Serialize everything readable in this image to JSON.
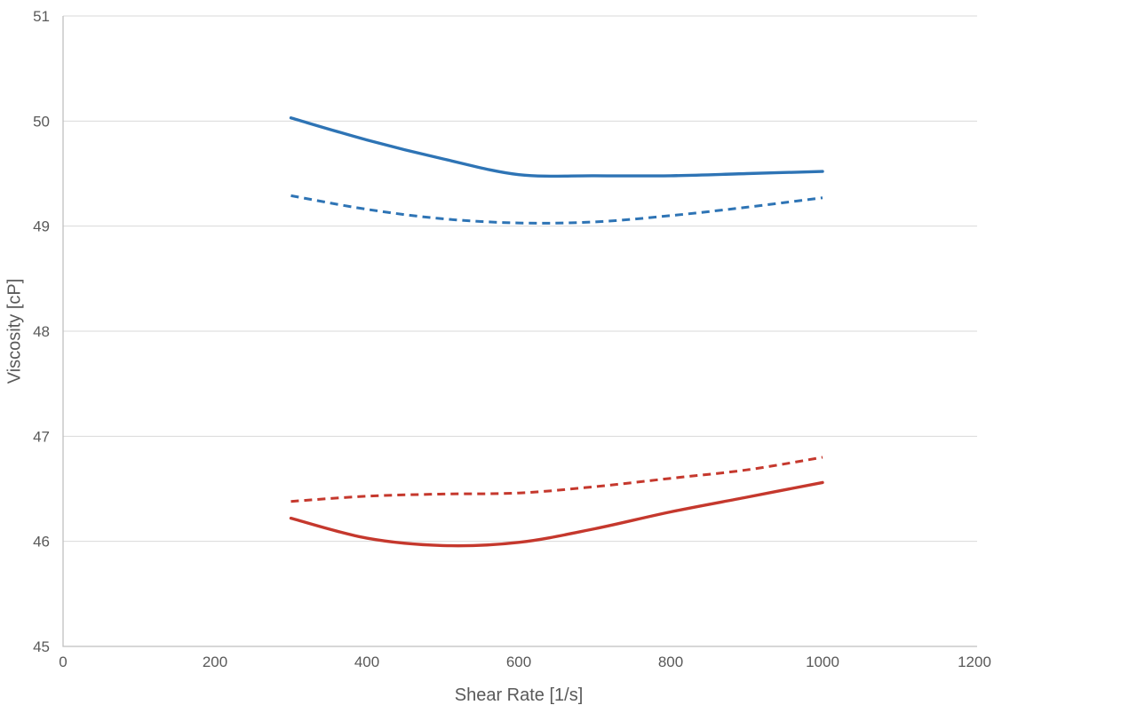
{
  "chart_data": {
    "type": "line",
    "title": "",
    "xlabel": "Shear Rate [1/s]",
    "ylabel": "Viscosity [cP]",
    "xlim": [
      0,
      1200
    ],
    "ylim": [
      45,
      51
    ],
    "x_ticks": [
      0,
      200,
      400,
      600,
      800,
      1000,
      1200
    ],
    "y_ticks": [
      45,
      46,
      47,
      48,
      49,
      50,
      51
    ],
    "grid": "horizontal-only",
    "legend_position": "none",
    "x": [
      300,
      400,
      500,
      600,
      700,
      800,
      900,
      1000
    ],
    "series": [
      {
        "name": "blue-solid",
        "color": "#2E74B5",
        "style": "solid",
        "values": [
          50.03,
          49.82,
          49.64,
          49.49,
          49.48,
          49.48,
          49.5,
          49.52
        ]
      },
      {
        "name": "blue-dashed",
        "color": "#2E74B5",
        "style": "dashed",
        "values": [
          49.29,
          49.16,
          49.07,
          49.03,
          49.04,
          49.1,
          49.18,
          49.27
        ]
      },
      {
        "name": "red-dashed",
        "color": "#C5382D",
        "style": "dashed",
        "values": [
          46.38,
          46.43,
          46.45,
          46.46,
          46.52,
          46.6,
          46.68,
          46.8
        ]
      },
      {
        "name": "red-solid",
        "color": "#C5382D",
        "style": "solid",
        "values": [
          46.22,
          46.03,
          45.96,
          45.99,
          46.12,
          46.28,
          46.42,
          46.56
        ]
      }
    ],
    "style": {
      "grid_color": "#D9D9D9",
      "axis_color": "#BFBFBF",
      "tick_label_color": "#595959",
      "background": "#FFFFFF"
    }
  }
}
